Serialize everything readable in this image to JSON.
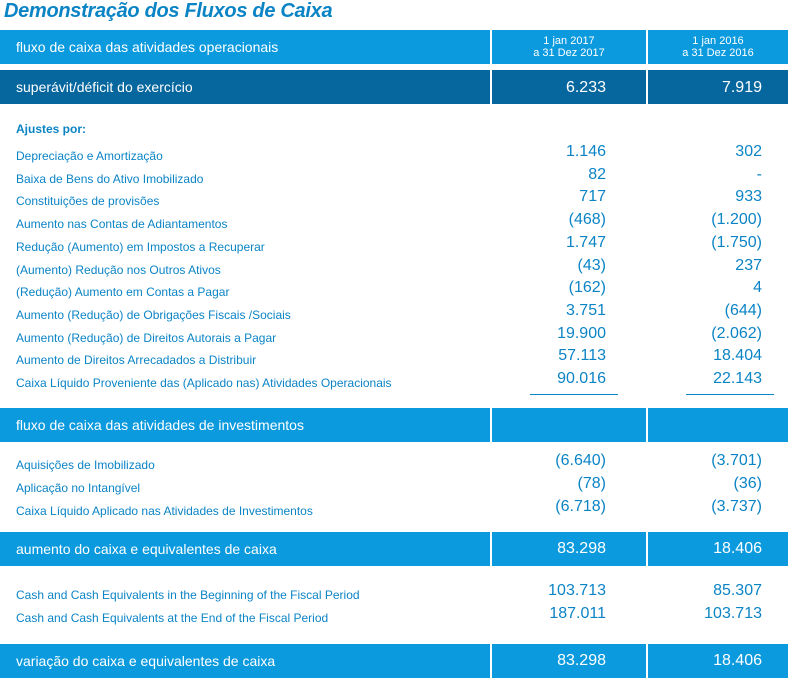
{
  "title": "Demonstração dos Fluxos de Caixa",
  "header": {
    "label": "fluxo de caixa das atividades operacionais",
    "col1": [
      "1 jan 2017",
      "a 31 Dez 2017"
    ],
    "col2": [
      "1 jan 2016",
      "a 31 Dez 2016"
    ]
  },
  "surplus": {
    "label": "superávit/déficit do exercício",
    "v2017": "6.233",
    "v2016": "7.919"
  },
  "adjustments_title": "Ajustes por:",
  "operating_rows": [
    {
      "label": "Depreciação e Amortização",
      "v2017": "1.146",
      "v2016": "302"
    },
    {
      "label": "Baixa de Bens do Ativo Imobilizado",
      "v2017": "82",
      "v2016": "-"
    },
    {
      "label": "Constituições de provisões",
      "v2017": "717",
      "v2016": "933"
    },
    {
      "label": "Aumento nas Contas de Adiantamentos",
      "v2017": "(468)",
      "v2016": "(1.200)"
    },
    {
      "label": "Redução (Aumento) em Impostos a Recuperar",
      "v2017": "1.747",
      "v2016": "(1.750)"
    },
    {
      "label": "(Aumento) Redução nos Outros Ativos",
      "v2017": "(43)",
      "v2016": "237"
    },
    {
      "label": "(Redução) Aumento em Contas a Pagar",
      "v2017": "(162)",
      "v2016": "4"
    },
    {
      "label": "Aumento (Redução) de Obrigações Fiscais /Sociais",
      "v2017": "3.751",
      "v2016": "(644)"
    },
    {
      "label": "Aumento (Redução) de Direitos Autorais a Pagar",
      "v2017": "19.900",
      "v2016": "(2.062)"
    },
    {
      "label": "Aumento de Direitos Arrecadados a Distribuir",
      "v2017": "57.113",
      "v2016": "18.404"
    },
    {
      "label": "Caixa Líquido Proveniente das (Aplicado nas) Atividades Operacionais",
      "v2017": "90.016",
      "v2016": "22.143"
    }
  ],
  "investing": {
    "label": "fluxo de caixa das atividades de investimentos"
  },
  "investing_rows": [
    {
      "label": "Aquisições de Imobilizado",
      "v2017": "(6.640)",
      "v2016": "(3.701)"
    },
    {
      "label": "Aplicação no Intangível",
      "v2017": "(78)",
      "v2016": "(36)"
    },
    {
      "label": "Caixa Líquido Aplicado nas Atividades de Investimentos",
      "v2017": "(6.718)",
      "v2016": "(3.737)"
    }
  ],
  "increase": {
    "label": "aumento do caixa e equivalentes de caixa",
    "v2017": "83.298",
    "v2016": "18.406"
  },
  "cash_rows": [
    {
      "label": "Cash and Cash Equivalents in the Beginning of the Fiscal Period",
      "v2017": "103.713",
      "v2016": "85.307"
    },
    {
      "label": "Cash and Cash Equivalents at the End of the Fiscal Period",
      "v2017": "187.011",
      "v2016": "103.713"
    }
  ],
  "variation": {
    "label": "variação do caixa e equivalentes de caixa",
    "v2017": "83.298",
    "v2016": "18.406"
  }
}
